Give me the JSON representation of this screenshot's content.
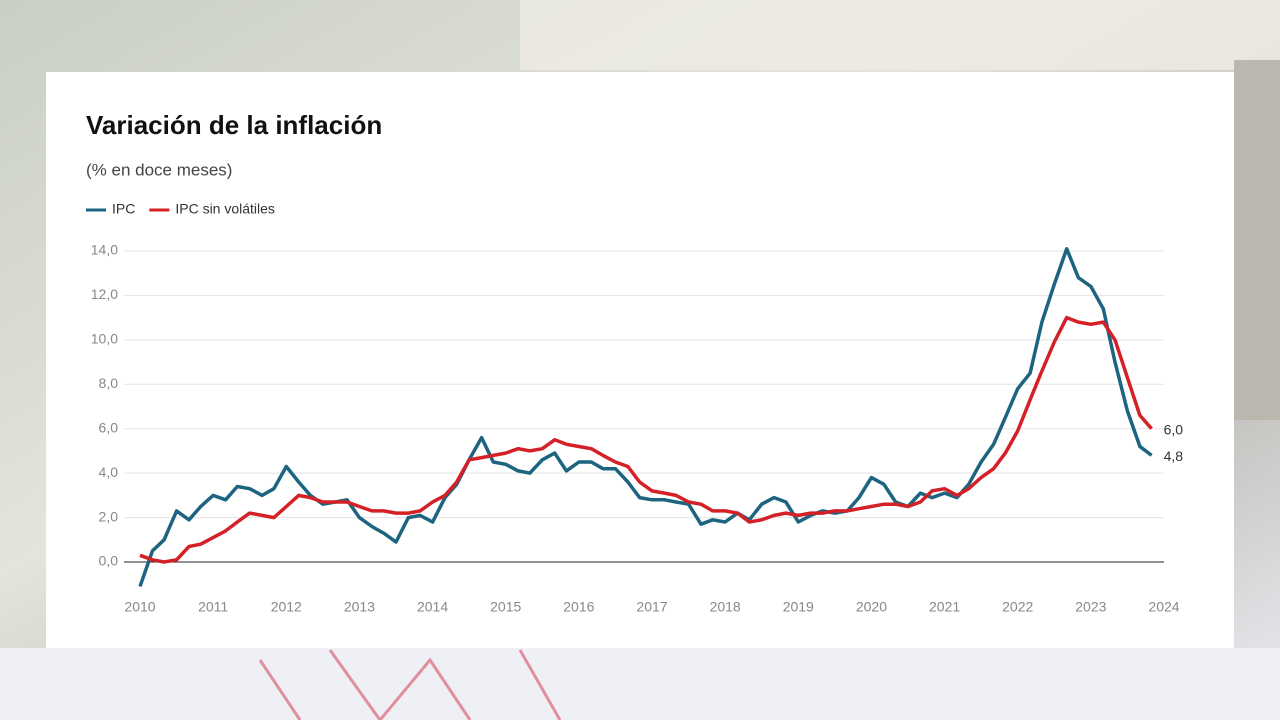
{
  "chart_data": {
    "type": "line",
    "title": "Variación de la inflación",
    "subtitle": "(% en doce meses)",
    "x": [
      2010,
      2010.17,
      2010.33,
      2010.5,
      2010.67,
      2010.83,
      2011,
      2011.17,
      2011.33,
      2011.5,
      2011.67,
      2011.83,
      2012,
      2012.17,
      2012.33,
      2012.5,
      2012.67,
      2012.83,
      2013,
      2013.17,
      2013.33,
      2013.5,
      2013.67,
      2013.83,
      2014,
      2014.17,
      2014.33,
      2014.5,
      2014.67,
      2014.83,
      2015,
      2015.17,
      2015.33,
      2015.5,
      2015.67,
      2015.83,
      2016,
      2016.17,
      2016.33,
      2016.5,
      2016.67,
      2016.83,
      2017,
      2017.17,
      2017.33,
      2017.5,
      2017.67,
      2017.83,
      2018,
      2018.17,
      2018.33,
      2018.5,
      2018.67,
      2018.83,
      2019,
      2019.17,
      2019.33,
      2019.5,
      2019.67,
      2019.83,
      2020,
      2020.17,
      2020.33,
      2020.5,
      2020.67,
      2020.83,
      2021,
      2021.17,
      2021.33,
      2021.5,
      2021.67,
      2021.83,
      2022,
      2022.17,
      2022.33,
      2022.5,
      2022.67,
      2022.83,
      2023,
      2023.17,
      2023.33,
      2023.5,
      2023.67,
      2023.83
    ],
    "series": [
      {
        "name": "IPC",
        "color": "#1c6480",
        "values": [
          -1.1,
          0.5,
          1.0,
          2.3,
          1.9,
          2.5,
          3.0,
          2.8,
          3.4,
          3.3,
          3.0,
          3.3,
          4.3,
          3.6,
          3.0,
          2.6,
          2.7,
          2.8,
          2.0,
          1.6,
          1.3,
          0.9,
          2.0,
          2.1,
          1.8,
          2.9,
          3.5,
          4.6,
          5.6,
          4.5,
          4.4,
          4.1,
          4.0,
          4.6,
          4.9,
          4.1,
          4.5,
          4.5,
          4.2,
          4.2,
          3.6,
          2.9,
          2.8,
          2.8,
          2.7,
          2.6,
          1.7,
          1.9,
          1.8,
          2.2,
          1.9,
          2.6,
          2.9,
          2.7,
          1.8,
          2.1,
          2.3,
          2.2,
          2.3,
          2.9,
          3.8,
          3.5,
          2.7,
          2.5,
          3.1,
          2.9,
          3.1,
          2.9,
          3.5,
          4.5,
          5.3,
          6.5,
          7.8,
          8.5,
          10.8,
          12.5,
          14.1,
          12.8,
          12.4,
          11.4,
          9.0,
          6.8,
          5.2,
          4.8
        ],
        "value_labels": [
          null,
          null,
          null,
          null,
          null,
          null,
          null,
          null,
          null,
          null,
          null,
          null,
          null,
          null,
          null,
          null,
          null,
          null,
          null,
          null,
          null,
          null,
          null,
          null,
          null,
          null,
          null,
          null,
          null,
          null,
          null,
          null,
          null,
          null,
          null,
          null,
          null,
          null,
          null,
          null,
          null,
          null,
          null,
          null,
          null,
          null,
          null,
          null,
          null,
          null,
          null,
          null,
          null,
          null,
          null,
          null,
          null,
          null,
          null,
          null,
          null,
          null,
          null,
          null,
          null,
          null,
          null,
          null,
          null,
          null,
          null,
          null,
          null,
          null,
          null,
          null,
          null,
          null,
          null,
          null,
          null,
          null,
          null,
          "4,8"
        ]
      },
      {
        "name": "IPC sin volátiles",
        "color": "#d42027",
        "values": [
          0.3,
          0.1,
          0.0,
          0.1,
          0.7,
          0.8,
          1.1,
          1.4,
          1.8,
          2.2,
          2.1,
          2.0,
          2.5,
          3.0,
          2.9,
          2.7,
          2.7,
          2.7,
          2.5,
          2.3,
          2.3,
          2.2,
          2.2,
          2.3,
          2.7,
          3.0,
          3.6,
          4.6,
          4.7,
          4.8,
          4.9,
          5.1,
          5.0,
          5.1,
          5.5,
          5.3,
          5.2,
          5.1,
          4.8,
          4.5,
          4.3,
          3.6,
          3.2,
          3.1,
          3.0,
          2.7,
          2.6,
          2.3,
          2.3,
          2.2,
          1.8,
          1.9,
          2.1,
          2.2,
          2.1,
          2.2,
          2.2,
          2.3,
          2.3,
          2.4,
          2.5,
          2.6,
          2.6,
          2.5,
          2.7,
          3.2,
          3.3,
          3.0,
          3.3,
          3.8,
          4.2,
          4.9,
          5.9,
          7.3,
          8.6,
          9.9,
          11.0,
          10.8,
          10.7,
          10.8,
          10.0,
          8.3,
          6.6,
          6.0
        ],
        "value_labels": [
          null,
          null,
          null,
          null,
          null,
          null,
          null,
          null,
          null,
          null,
          null,
          null,
          null,
          null,
          null,
          null,
          null,
          null,
          null,
          null,
          null,
          null,
          null,
          null,
          null,
          null,
          null,
          null,
          null,
          null,
          null,
          null,
          null,
          null,
          null,
          null,
          null,
          null,
          null,
          null,
          null,
          null,
          null,
          null,
          null,
          null,
          null,
          null,
          null,
          null,
          null,
          null,
          null,
          null,
          null,
          null,
          null,
          null,
          null,
          null,
          null,
          null,
          null,
          null,
          null,
          null,
          null,
          null,
          null,
          null,
          null,
          null,
          null,
          null,
          null,
          null,
          null,
          null,
          null,
          null,
          null,
          null,
          null,
          "6,0"
        ]
      }
    ],
    "xlim": [
      2010,
      2024
    ],
    "xticks": [
      2010,
      2011,
      2012,
      2013,
      2014,
      2015,
      2016,
      2017,
      2018,
      2019,
      2020,
      2021,
      2022,
      2023,
      2024
    ],
    "ylim": [
      0,
      14
    ],
    "yticks": [
      {
        "value": 0,
        "label": "0,0"
      },
      {
        "value": 2,
        "label": "2,0"
      },
      {
        "value": 4,
        "label": "4,0"
      },
      {
        "value": 6,
        "label": "6,0"
      },
      {
        "value": 8,
        "label": "8,0"
      },
      {
        "value": 10,
        "label": "10,0"
      },
      {
        "value": 12,
        "label": "12,0"
      },
      {
        "value": 14,
        "label": "14,0"
      }
    ],
    "grid": true,
    "legend": "top-left"
  }
}
